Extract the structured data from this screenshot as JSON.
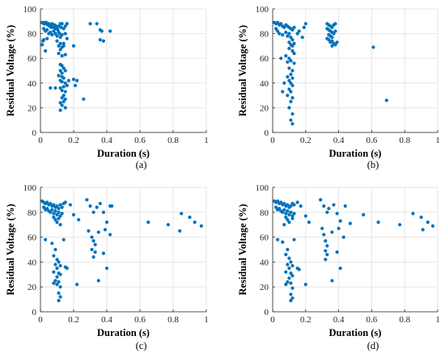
{
  "figure": {
    "marker_color": "#0072BD",
    "grid_color": "#e6e6e6",
    "axis_color": "#262626"
  },
  "chart_data": [
    {
      "type": "scatter",
      "panel_label": "(a)",
      "xlabel": "Duration (s)",
      "ylabel": "Residual Voltage (%)",
      "xlim": [
        0,
        1
      ],
      "ylim": [
        0,
        100
      ],
      "xticks": [
        "0",
        "0.2",
        "0.4",
        "0.6",
        "0.8",
        "1"
      ],
      "yticks": [
        "0",
        "20",
        "40",
        "60",
        "80",
        "100"
      ],
      "grid": true,
      "points": [
        [
          0.01,
          89
        ],
        [
          0.02,
          88
        ],
        [
          0.025,
          89
        ],
        [
          0.03,
          88
        ],
        [
          0.035,
          89
        ],
        [
          0.04,
          88
        ],
        [
          0.045,
          87
        ],
        [
          0.05,
          88
        ],
        [
          0.055,
          86
        ],
        [
          0.06,
          87
        ],
        [
          0.065,
          85
        ],
        [
          0.07,
          88
        ],
        [
          0.075,
          86
        ],
        [
          0.08,
          85
        ],
        [
          0.085,
          87
        ],
        [
          0.09,
          84
        ],
        [
          0.095,
          86
        ],
        [
          0.1,
          85
        ],
        [
          0.105,
          83
        ],
        [
          0.11,
          86
        ],
        [
          0.115,
          80
        ],
        [
          0.12,
          88
        ],
        [
          0.125,
          85
        ],
        [
          0.13,
          88
        ],
        [
          0.14,
          84
        ],
        [
          0.15,
          86
        ],
        [
          0.16,
          88
        ],
        [
          0.02,
          84
        ],
        [
          0.03,
          82
        ],
        [
          0.04,
          83
        ],
        [
          0.05,
          80
        ],
        [
          0.06,
          81
        ],
        [
          0.07,
          79
        ],
        [
          0.08,
          82
        ],
        [
          0.09,
          80
        ],
        [
          0.1,
          78
        ],
        [
          0.11,
          81
        ],
        [
          0.12,
          77
        ],
        [
          0.13,
          79
        ],
        [
          0.15,
          80
        ],
        [
          0.16,
          76
        ],
        [
          0.02,
          75
        ],
        [
          0.03,
          66
        ],
        [
          0.04,
          76
        ],
        [
          0.1,
          74
        ],
        [
          0.11,
          70
        ],
        [
          0.12,
          72
        ],
        [
          0.13,
          69
        ],
        [
          0.14,
          70
        ],
        [
          0.12,
          67
        ],
        [
          0.14,
          72
        ],
        [
          0.11,
          64
        ],
        [
          0.13,
          62
        ],
        [
          0.15,
          63
        ],
        [
          0.2,
          70
        ],
        [
          0.12,
          55
        ],
        [
          0.13,
          54
        ],
        [
          0.14,
          52
        ],
        [
          0.12,
          50
        ],
        [
          0.13,
          48
        ],
        [
          0.15,
          50
        ],
        [
          0.11,
          46
        ],
        [
          0.13,
          45
        ],
        [
          0.14,
          44
        ],
        [
          0.12,
          42
        ],
        [
          0.13,
          41
        ],
        [
          0.15,
          40
        ],
        [
          0.16,
          38
        ],
        [
          0.14,
          37
        ],
        [
          0.17,
          42
        ],
        [
          0.2,
          43
        ],
        [
          0.22,
          42
        ],
        [
          0.21,
          38
        ],
        [
          0.06,
          36
        ],
        [
          0.09,
          36
        ],
        [
          0.12,
          36
        ],
        [
          0.13,
          34
        ],
        [
          0.15,
          33
        ],
        [
          0.14,
          30
        ],
        [
          0.13,
          28
        ],
        [
          0.15,
          27
        ],
        [
          0.14,
          25
        ],
        [
          0.12,
          24
        ],
        [
          0.13,
          22
        ],
        [
          0.12,
          18
        ],
        [
          0.15,
          20
        ],
        [
          0.26,
          27
        ],
        [
          0.3,
          88
        ],
        [
          0.34,
          88
        ],
        [
          0.36,
          83
        ],
        [
          0.37,
          82
        ],
        [
          0.36,
          75
        ],
        [
          0.38,
          74
        ],
        [
          0.42,
          82
        ],
        [
          0.01,
          71
        ],
        [
          0.015,
          74
        ]
      ]
    },
    {
      "type": "scatter",
      "panel_label": "(b)",
      "xlabel": "Duration (s)",
      "ylabel": "Residual Voltage (%)",
      "xlim": [
        0,
        1
      ],
      "ylim": [
        0,
        100
      ],
      "xticks": [
        "0",
        "0.2",
        "0.4",
        "0.6",
        "0.8",
        "1"
      ],
      "yticks": [
        "0",
        "20",
        "40",
        "60",
        "80",
        "100"
      ],
      "grid": true,
      "points": [
        [
          0.01,
          89
        ],
        [
          0.02,
          88
        ],
        [
          0.03,
          89
        ],
        [
          0.04,
          87
        ],
        [
          0.05,
          88
        ],
        [
          0.06,
          86
        ],
        [
          0.07,
          85
        ],
        [
          0.08,
          87
        ],
        [
          0.09,
          86
        ],
        [
          0.1,
          85
        ],
        [
          0.11,
          84
        ],
        [
          0.12,
          83
        ],
        [
          0.13,
          85
        ],
        [
          0.15,
          80
        ],
        [
          0.16,
          82
        ],
        [
          0.19,
          85
        ],
        [
          0.2,
          88
        ],
        [
          0.02,
          84
        ],
        [
          0.03,
          82
        ],
        [
          0.04,
          80
        ],
        [
          0.06,
          79
        ],
        [
          0.08,
          81
        ],
        [
          0.09,
          78
        ],
        [
          0.1,
          80
        ],
        [
          0.11,
          77
        ],
        [
          0.12,
          75
        ],
        [
          0.1,
          73
        ],
        [
          0.11,
          71
        ],
        [
          0.12,
          70
        ],
        [
          0.13,
          72
        ],
        [
          0.1,
          68
        ],
        [
          0.12,
          66
        ],
        [
          0.13,
          64
        ],
        [
          0.08,
          62
        ],
        [
          0.1,
          60
        ],
        [
          0.09,
          57
        ],
        [
          0.11,
          58
        ],
        [
          0.13,
          56
        ],
        [
          0.1,
          52
        ],
        [
          0.12,
          50
        ],
        [
          0.11,
          47
        ],
        [
          0.09,
          45
        ],
        [
          0.12,
          44
        ],
        [
          0.1,
          42
        ],
        [
          0.11,
          40
        ],
        [
          0.12,
          38
        ],
        [
          0.1,
          35
        ],
        [
          0.11,
          33
        ],
        [
          0.09,
          30
        ],
        [
          0.12,
          28
        ],
        [
          0.11,
          25
        ],
        [
          0.1,
          20
        ],
        [
          0.12,
          15
        ],
        [
          0.11,
          10
        ],
        [
          0.12,
          7
        ],
        [
          0.05,
          60
        ],
        [
          0.07,
          40
        ],
        [
          0.06,
          33
        ],
        [
          0.18,
          77
        ],
        [
          0.33,
          88
        ],
        [
          0.34,
          87
        ],
        [
          0.35,
          86
        ],
        [
          0.36,
          85
        ],
        [
          0.37,
          87
        ],
        [
          0.38,
          88
        ],
        [
          0.33,
          84
        ],
        [
          0.34,
          83
        ],
        [
          0.35,
          82
        ],
        [
          0.36,
          81
        ],
        [
          0.37,
          80
        ],
        [
          0.38,
          82
        ],
        [
          0.34,
          79
        ],
        [
          0.35,
          78
        ],
        [
          0.36,
          77
        ],
        [
          0.34,
          75
        ],
        [
          0.36,
          74
        ],
        [
          0.35,
          73
        ],
        [
          0.37,
          72
        ],
        [
          0.38,
          71
        ],
        [
          0.36,
          70
        ],
        [
          0.39,
          73
        ],
        [
          0.33,
          76
        ],
        [
          0.61,
          69
        ],
        [
          0.69,
          26
        ]
      ]
    },
    {
      "type": "scatter",
      "panel_label": "(c)",
      "xlabel": "Duration (s)",
      "ylabel": "Residual Voltage (%)",
      "xlim": [
        0,
        1
      ],
      "ylim": [
        0,
        100
      ],
      "xticks": [
        "0",
        "0.2",
        "0.4",
        "0.6",
        "0.8",
        "1"
      ],
      "yticks": [
        "0",
        "20",
        "40",
        "60",
        "80",
        "100"
      ],
      "grid": true,
      "points": [
        [
          0.01,
          89
        ],
        [
          0.02,
          88
        ],
        [
          0.03,
          87
        ],
        [
          0.04,
          88
        ],
        [
          0.05,
          86
        ],
        [
          0.06,
          87
        ],
        [
          0.07,
          85
        ],
        [
          0.08,
          86
        ],
        [
          0.09,
          84
        ],
        [
          0.1,
          85
        ],
        [
          0.11,
          83
        ],
        [
          0.12,
          86
        ],
        [
          0.13,
          84
        ],
        [
          0.14,
          87
        ],
        [
          0.15,
          88
        ],
        [
          0.18,
          86
        ],
        [
          0.02,
          84
        ],
        [
          0.03,
          82
        ],
        [
          0.04,
          83
        ],
        [
          0.05,
          81
        ],
        [
          0.06,
          80
        ],
        [
          0.07,
          82
        ],
        [
          0.08,
          79
        ],
        [
          0.09,
          81
        ],
        [
          0.1,
          78
        ],
        [
          0.11,
          80
        ],
        [
          0.12,
          77
        ],
        [
          0.13,
          79
        ],
        [
          0.08,
          76
        ],
        [
          0.09,
          74
        ],
        [
          0.1,
          72
        ],
        [
          0.11,
          75
        ],
        [
          0.2,
          78
        ],
        [
          0.23,
          74
        ],
        [
          0.12,
          70
        ],
        [
          0.03,
          58
        ],
        [
          0.07,
          55
        ],
        [
          0.09,
          50
        ],
        [
          0.08,
          45
        ],
        [
          0.1,
          42
        ],
        [
          0.11,
          40
        ],
        [
          0.09,
          38
        ],
        [
          0.12,
          37
        ],
        [
          0.1,
          35
        ],
        [
          0.15,
          36
        ],
        [
          0.14,
          58
        ],
        [
          0.08,
          32
        ],
        [
          0.11,
          31
        ],
        [
          0.12,
          30
        ],
        [
          0.1,
          28
        ],
        [
          0.09,
          25
        ],
        [
          0.11,
          24
        ],
        [
          0.1,
          22
        ],
        [
          0.08,
          23
        ],
        [
          0.12,
          20
        ],
        [
          0.11,
          15
        ],
        [
          0.12,
          12
        ],
        [
          0.11,
          9
        ],
        [
          0.22,
          22
        ],
        [
          0.16,
          35
        ],
        [
          0.28,
          90
        ],
        [
          0.3,
          85
        ],
        [
          0.32,
          80
        ],
        [
          0.34,
          84
        ],
        [
          0.36,
          87
        ],
        [
          0.38,
          80
        ],
        [
          0.4,
          72
        ],
        [
          0.42,
          85
        ],
        [
          0.43,
          85
        ],
        [
          0.29,
          65
        ],
        [
          0.31,
          60
        ],
        [
          0.32,
          57
        ],
        [
          0.33,
          54
        ],
        [
          0.31,
          50
        ],
        [
          0.33,
          48
        ],
        [
          0.32,
          44
        ],
        [
          0.35,
          64
        ],
        [
          0.39,
          66
        ],
        [
          0.4,
          35
        ],
        [
          0.35,
          25
        ],
        [
          0.38,
          47
        ],
        [
          0.42,
          62
        ],
        [
          0.65,
          72
        ],
        [
          0.77,
          70
        ],
        [
          0.85,
          79
        ],
        [
          0.84,
          65
        ],
        [
          0.9,
          76
        ],
        [
          0.93,
          72
        ],
        [
          0.97,
          69
        ]
      ]
    },
    {
      "type": "scatter",
      "panel_label": "(d)",
      "xlabel": "Duration (s)",
      "ylabel": "Residual Voltage (%)",
      "xlim": [
        0,
        1
      ],
      "ylim": [
        0,
        100
      ],
      "xticks": [
        "0",
        "0.2",
        "0.4",
        "0.6",
        "0.8",
        "1"
      ],
      "yticks": [
        "0",
        "20",
        "40",
        "60",
        "80",
        "100"
      ],
      "grid": true,
      "points": [
        [
          0.01,
          89
        ],
        [
          0.02,
          88
        ],
        [
          0.03,
          89
        ],
        [
          0.04,
          87
        ],
        [
          0.05,
          88
        ],
        [
          0.06,
          86
        ],
        [
          0.07,
          87
        ],
        [
          0.08,
          85
        ],
        [
          0.09,
          86
        ],
        [
          0.1,
          84
        ],
        [
          0.11,
          85
        ],
        [
          0.12,
          87
        ],
        [
          0.13,
          86
        ],
        [
          0.15,
          88
        ],
        [
          0.17,
          85
        ],
        [
          0.02,
          84
        ],
        [
          0.03,
          82
        ],
        [
          0.04,
          83
        ],
        [
          0.05,
          81
        ],
        [
          0.06,
          80
        ],
        [
          0.07,
          82
        ],
        [
          0.08,
          79
        ],
        [
          0.09,
          81
        ],
        [
          0.1,
          78
        ],
        [
          0.11,
          80
        ],
        [
          0.12,
          77
        ],
        [
          0.13,
          79
        ],
        [
          0.08,
          76
        ],
        [
          0.09,
          74
        ],
        [
          0.1,
          72
        ],
        [
          0.12,
          75
        ],
        [
          0.2,
          77
        ],
        [
          0.22,
          72
        ],
        [
          0.07,
          70
        ],
        [
          0.03,
          58
        ],
        [
          0.06,
          56
        ],
        [
          0.09,
          50
        ],
        [
          0.08,
          46
        ],
        [
          0.1,
          43
        ],
        [
          0.11,
          40
        ],
        [
          0.09,
          38
        ],
        [
          0.12,
          37
        ],
        [
          0.1,
          35
        ],
        [
          0.15,
          35
        ],
        [
          0.13,
          58
        ],
        [
          0.08,
          32
        ],
        [
          0.11,
          31
        ],
        [
          0.12,
          29
        ],
        [
          0.1,
          27
        ],
        [
          0.09,
          24
        ],
        [
          0.11,
          23
        ],
        [
          0.08,
          22
        ],
        [
          0.12,
          19
        ],
        [
          0.11,
          14
        ],
        [
          0.12,
          11
        ],
        [
          0.11,
          9
        ],
        [
          0.2,
          22
        ],
        [
          0.16,
          34
        ],
        [
          0.29,
          90
        ],
        [
          0.31,
          85
        ],
        [
          0.33,
          80
        ],
        [
          0.34,
          83
        ],
        [
          0.37,
          86
        ],
        [
          0.39,
          79
        ],
        [
          0.41,
          73
        ],
        [
          0.44,
          85
        ],
        [
          0.3,
          67
        ],
        [
          0.31,
          62
        ],
        [
          0.32,
          57
        ],
        [
          0.33,
          53
        ],
        [
          0.32,
          49
        ],
        [
          0.33,
          46
        ],
        [
          0.32,
          42
        ],
        [
          0.36,
          64
        ],
        [
          0.4,
          67
        ],
        [
          0.41,
          35
        ],
        [
          0.36,
          25
        ],
        [
          0.39,
          48
        ],
        [
          0.43,
          60
        ],
        [
          0.47,
          71
        ],
        [
          0.55,
          78
        ],
        [
          0.64,
          72
        ],
        [
          0.77,
          70
        ],
        [
          0.85,
          79
        ],
        [
          0.9,
          76
        ],
        [
          0.91,
          66
        ],
        [
          0.94,
          72
        ],
        [
          0.97,
          69
        ]
      ]
    }
  ]
}
